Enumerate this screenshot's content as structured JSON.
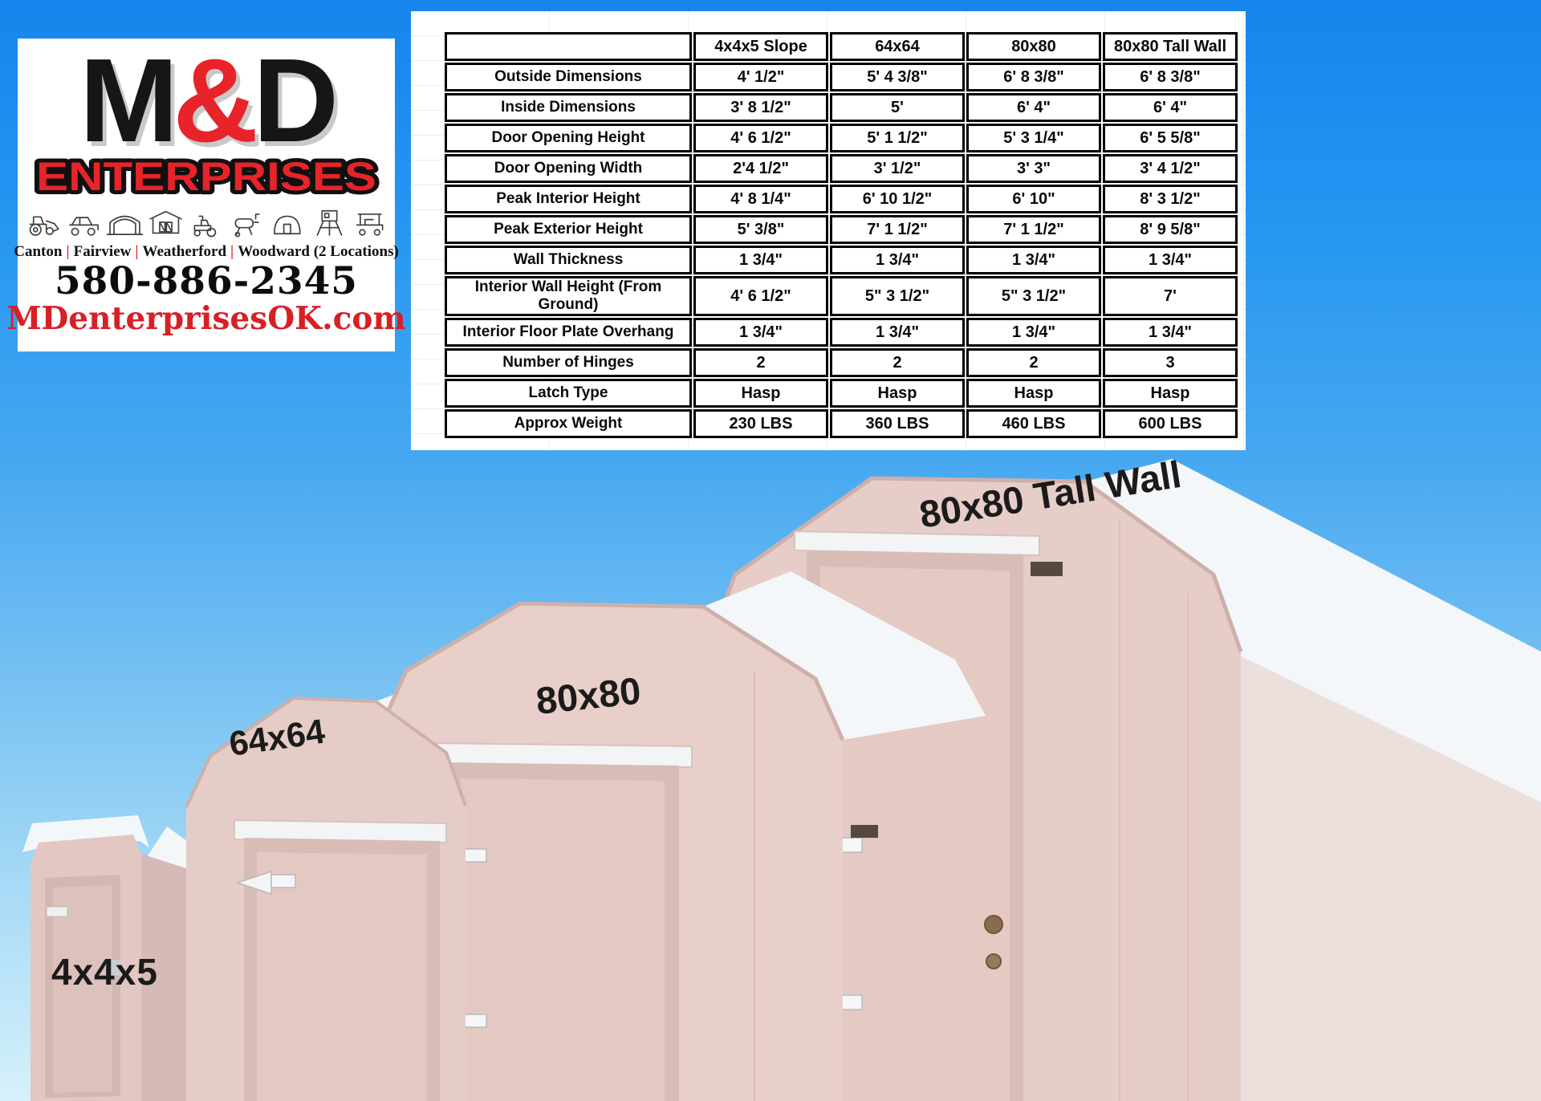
{
  "logo_card": {
    "brand": {
      "m": "M",
      "amp": "&",
      "d": "D",
      "enterprises": "ENTERPRISES"
    },
    "icons": [
      "tractor-icon",
      "utv-icon",
      "carport-icon",
      "portable-building-icon",
      "mower-icon",
      "smoker-grill-icon",
      "hunting-blind-icon",
      "deer-stand-icon",
      "golf-cart-icon"
    ],
    "cities": [
      "Canton",
      "Fairview",
      "Weatherford",
      "Woodward (2 Locations)"
    ],
    "separator": "|",
    "phone": "580-886-2345",
    "website": "MDenterprisesOK.com"
  },
  "spec_table": {
    "col_headers": [
      "",
      "4x4x5 Slope",
      "64x64",
      "80x80",
      "80x80 Tall Wall"
    ],
    "rows": [
      {
        "label": "Outside Dimensions",
        "values": [
          "4' 1/2\"",
          "5' 4 3/8\"",
          "6' 8 3/8\"",
          "6' 8 3/8\""
        ]
      },
      {
        "label": "Inside Dimensions",
        "values": [
          "3' 8 1/2\"",
          "5'",
          "6' 4\"",
          "6' 4\""
        ]
      },
      {
        "label": "Door Opening Height",
        "values": [
          "4' 6 1/2\"",
          "5' 1 1/2\"",
          "5' 3 1/4\"",
          "6' 5 5/8\""
        ]
      },
      {
        "label": "Door Opening Width",
        "values": [
          "2'4 1/2\"",
          "3' 1/2\"",
          "3' 3\"",
          "3' 4 1/2\""
        ]
      },
      {
        "label": "Peak Interior Height",
        "values": [
          "4' 8 1/4\"",
          "6' 10 1/2\"",
          "6' 10\"",
          "8' 3 1/2\""
        ]
      },
      {
        "label": "Peak Exterior Height",
        "values": [
          "5' 3/8\"",
          "7' 1 1/2\"",
          "7' 1 1/2\"",
          "8' 9 5/8\""
        ]
      },
      {
        "label": "Wall Thickness",
        "values": [
          "1 3/4\"",
          "1 3/4\"",
          "1 3/4\"",
          "1 3/4\""
        ]
      },
      {
        "label": "Interior Wall Height (From Ground)",
        "values": [
          "4' 6 1/2\"",
          "5\" 3 1/2\"",
          "5\" 3 1/2\"",
          "7'"
        ]
      },
      {
        "label": "Interior Floor Plate Overhang",
        "values": [
          "1 3/4\"",
          "1 3/4\"",
          "1 3/4\"",
          "1 3/4\""
        ]
      },
      {
        "label": "Number of Hinges",
        "values": [
          "2",
          "2",
          "2",
          "3"
        ]
      },
      {
        "label": "Latch Type",
        "values": [
          "Hasp",
          "Hasp",
          "Hasp",
          "Hasp"
        ]
      },
      {
        "label": "Approx Weight",
        "values": [
          "230 LBS",
          "360 LBS",
          "460 LBS",
          "600 LBS"
        ]
      }
    ]
  },
  "shed_labels": {
    "small": "4x4x5",
    "medium": "64x64",
    "large": "80x80",
    "tall": "80x80 Tall Wall"
  },
  "colors": {
    "accent_red": "#e8232a",
    "sky_top": "#1585ec",
    "sky_bottom": "#d6f1fb",
    "shed_wall": "#e7cdc8",
    "roof_white": "#f4f7f9",
    "table_border": "#000000"
  }
}
